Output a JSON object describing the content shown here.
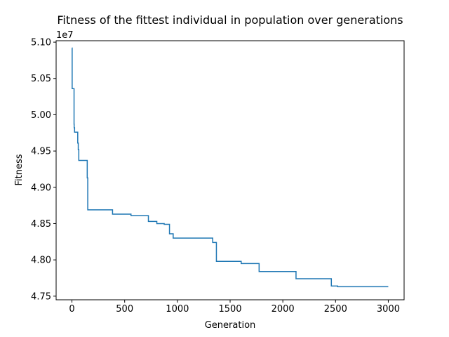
{
  "chart_data": {
    "type": "line",
    "title": "Fitness of the fittest individual in population over generations",
    "xlabel": "Generation",
    "ylabel": "Fitness",
    "y_multiplier_label": "1e7",
    "xlim": [
      -150,
      3150
    ],
    "ylim": [
      4.745,
      5.102
    ],
    "x_ticks": [
      0,
      500,
      1000,
      1500,
      2000,
      2500,
      3000
    ],
    "x_tick_labels": [
      "0",
      "500",
      "1000",
      "1500",
      "2000",
      "2500",
      "3000"
    ],
    "y_ticks": [
      4.75,
      4.8,
      4.85,
      4.9,
      4.95,
      5.0,
      5.05,
      5.1
    ],
    "y_tick_labels": [
      "4.75",
      "4.80",
      "4.85",
      "4.90",
      "4.95",
      "5.00",
      "5.05",
      "5.10"
    ],
    "grid": false,
    "legend": "none",
    "series": [
      {
        "color": "#1f77b4",
        "step": "post",
        "x": [
          0,
          2,
          20,
          21,
          25,
          55,
          60,
          65,
          145,
          150,
          385,
          560,
          725,
          805,
          875,
          925,
          960,
          1335,
          1370,
          1605,
          1775,
          2125,
          2460,
          2520,
          3000
        ],
        "y": [
          5.092,
          5.036,
          4.987,
          4.982,
          4.976,
          4.961,
          4.952,
          4.937,
          4.913,
          4.869,
          4.863,
          4.861,
          4.853,
          4.85,
          4.849,
          4.836,
          4.83,
          4.824,
          4.798,
          4.795,
          4.784,
          4.774,
          4.764,
          4.763,
          4.763
        ]
      }
    ]
  }
}
